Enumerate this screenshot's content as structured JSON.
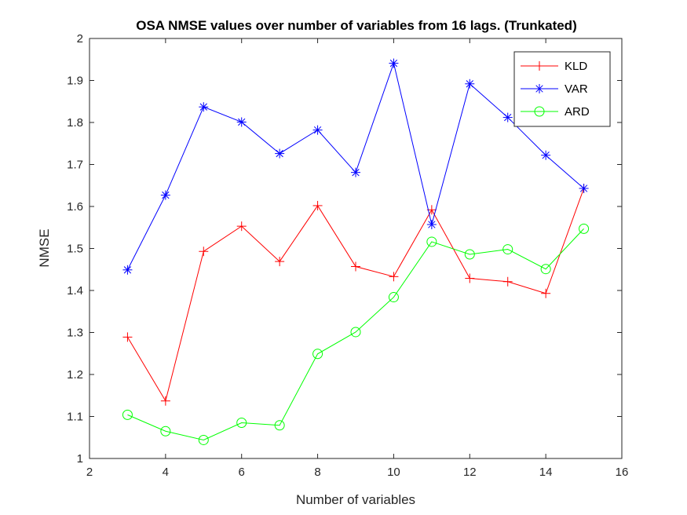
{
  "chart_data": {
    "type": "line",
    "title": "OSA NMSE values over number of variables from 16 lags. (Trunkated)",
    "xlabel": "Number of variables",
    "ylabel": "NMSE",
    "xlim": [
      2,
      16
    ],
    "ylim": [
      1,
      2
    ],
    "xticks": [
      "2",
      "4",
      "6",
      "8",
      "10",
      "12",
      "14",
      "16"
    ],
    "yticks": [
      "1",
      "1.1",
      "1.2",
      "1.3",
      "1.4",
      "1.5",
      "1.6",
      "1.7",
      "1.8",
      "1.9",
      "2"
    ],
    "grid": false,
    "legend_position": "top-right",
    "x": [
      3,
      4,
      5,
      6,
      7,
      8,
      9,
      10,
      11,
      12,
      13,
      14,
      15
    ],
    "series": [
      {
        "name": "KLD",
        "color": "#ff0000",
        "marker": "plus",
        "values": [
          1.289,
          1.137,
          1.493,
          1.553,
          1.469,
          1.602,
          1.457,
          1.433,
          1.592,
          1.429,
          1.421,
          1.393,
          1.643
        ]
      },
      {
        "name": "VAR",
        "color": "#0000ff",
        "marker": "asterisk",
        "values": [
          1.449,
          1.627,
          1.837,
          1.801,
          1.726,
          1.782,
          1.681,
          1.941,
          1.557,
          1.892,
          1.812,
          1.722,
          1.643
        ]
      },
      {
        "name": "ARD",
        "color": "#00ff00",
        "marker": "circle",
        "values": [
          1.104,
          1.065,
          1.044,
          1.085,
          1.079,
          1.249,
          1.301,
          1.384,
          1.516,
          1.486,
          1.498,
          1.451,
          1.547
        ]
      }
    ]
  }
}
